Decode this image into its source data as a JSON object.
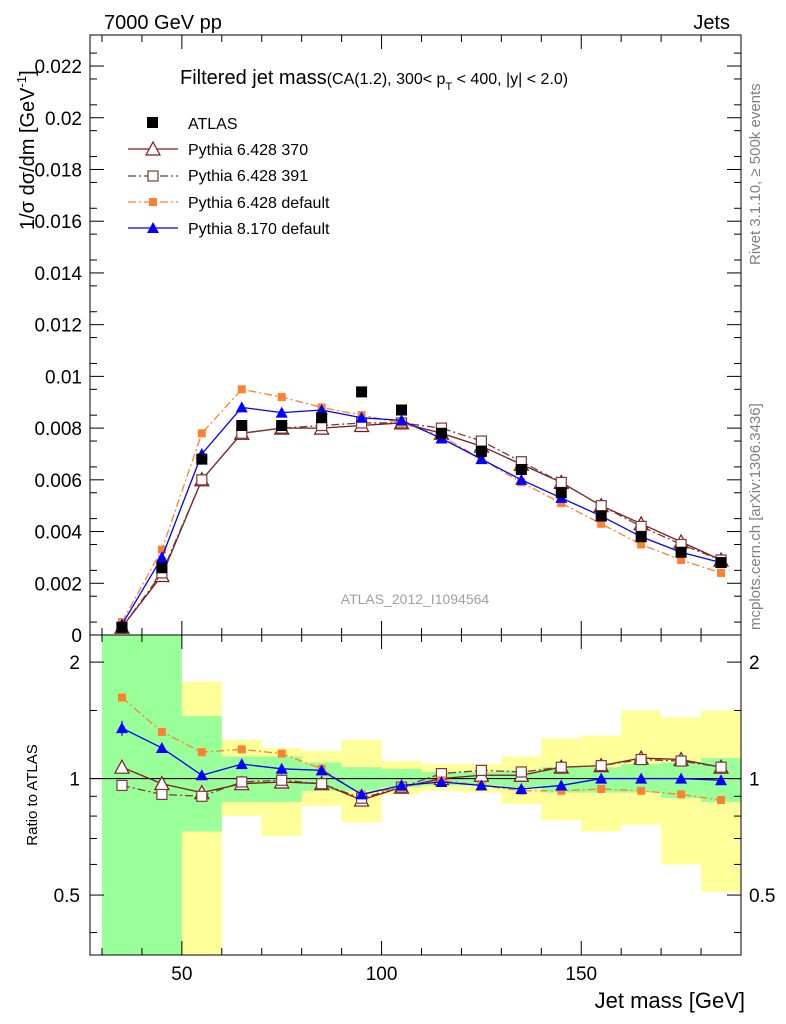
{
  "header": {
    "left": "7000 GeV pp",
    "right": "Jets"
  },
  "side": {
    "rivet": "Rivet 3.1.10, ≥ 500k events",
    "mcplots": "mcplots.cern.ch [arXiv:1306.3436]"
  },
  "watermark": "ATLAS_2012_I1094564",
  "colors": {
    "atlas": "#000000",
    "p370": "#7b1a1a",
    "p391": "#7b3a3a",
    "p6def": "#ff8030",
    "p8def": "#0000ff",
    "band_inner": "#99ff99",
    "band_outer": "#ffff99"
  },
  "chart_data": [
    {
      "type": "line",
      "title_main": "Filtered jet mass",
      "title_sub": "(CA(1.2), 300< p",
      "title_sub_T": "T",
      "title_sub_rest": " < 400, |y| < 2.0)",
      "ylabel": "1/σ dσ/dm [GeV",
      "ylabel_sup": "-1",
      "ylabel_close": "]",
      "xlim": [
        27,
        190
      ],
      "ylim": [
        0,
        0.0232
      ],
      "yticks": [
        "0",
        "0.002",
        "0.004",
        "0.006",
        "0.008",
        "0.01",
        "0.012",
        "0.014",
        "0.016",
        "0.018",
        "0.02",
        "0.022"
      ],
      "ytick_values": [
        0,
        0.002,
        0.004,
        0.006,
        0.008,
        0.01,
        0.012,
        0.014,
        0.016,
        0.018,
        0.02,
        0.022
      ],
      "x": [
        35,
        45,
        55,
        65,
        75,
        85,
        95,
        105,
        115,
        125,
        135,
        145,
        155,
        165,
        175,
        185
      ],
      "legend": [
        "ATLAS",
        "Pythia 6.428 370",
        "Pythia 6.428 391",
        "Pythia 6.428 default",
        "Pythia 8.170 default"
      ],
      "series": [
        {
          "name": "ATLAS",
          "values": [
            0.0003,
            0.0026,
            0.0068,
            0.0081,
            0.0081,
            0.0084,
            0.0094,
            0.0087,
            0.0078,
            0.0071,
            0.0064,
            0.0055,
            0.0046,
            0.0038,
            0.0032,
            0.0028
          ]
        },
        {
          "name": "Pythia 6.428 370",
          "values": [
            0.0003,
            0.0023,
            0.006,
            0.0078,
            0.008,
            0.008,
            0.0081,
            0.0082,
            0.0078,
            0.0073,
            0.0066,
            0.0059,
            0.005,
            0.0043,
            0.0036,
            0.0029
          ]
        },
        {
          "name": "Pythia 6.428 391",
          "values": [
            0.0003,
            0.0024,
            0.006,
            0.0078,
            0.008,
            0.0081,
            0.0082,
            0.0082,
            0.008,
            0.0075,
            0.0067,
            0.0059,
            0.005,
            0.0042,
            0.0035,
            0.0029
          ]
        },
        {
          "name": "Pythia 6.428 default",
          "values": [
            0.0005,
            0.0033,
            0.0078,
            0.0095,
            0.0092,
            0.0088,
            0.0085,
            0.0082,
            0.0077,
            0.0068,
            0.0059,
            0.0051,
            0.0043,
            0.0035,
            0.0029,
            0.0024
          ]
        },
        {
          "name": "Pythia 8.170 default",
          "values": [
            0.0004,
            0.003,
            0.007,
            0.0088,
            0.0086,
            0.0087,
            0.0084,
            0.0083,
            0.0076,
            0.0068,
            0.006,
            0.0053,
            0.0046,
            0.0038,
            0.0032,
            0.0028
          ]
        }
      ]
    },
    {
      "type": "line",
      "ylabel": "Ratio to ATLAS",
      "xlabel": "Jet mass [GeV]",
      "xticks": [
        "50",
        "100",
        "150"
      ],
      "xtick_values": [
        50,
        100,
        150
      ],
      "xlim": [
        27,
        190
      ],
      "ylim": [
        0.35,
        2.35
      ],
      "yscale": "log",
      "yticks": [
        "0.5",
        "1",
        "2"
      ],
      "ytick_values": [
        0.5,
        1,
        2
      ],
      "x": [
        35,
        45,
        55,
        65,
        75,
        85,
        95,
        105,
        115,
        125,
        135,
        145,
        155,
        165,
        175,
        185
      ],
      "bin_edges": [
        30,
        40,
        50,
        60,
        70,
        80,
        90,
        100,
        110,
        120,
        130,
        140,
        150,
        160,
        170,
        180,
        190
      ],
      "band_inner": {
        "low": [
          0.35,
          0.35,
          0.73,
          0.87,
          0.87,
          0.93,
          0.93,
          0.95,
          0.96,
          0.96,
          0.95,
          0.92,
          0.92,
          0.92,
          0.89,
          0.87
        ],
        "high": [
          2.35,
          2.35,
          1.45,
          1.14,
          1.14,
          1.1,
          1.07,
          1.06,
          1.04,
          1.04,
          1.05,
          1.07,
          1.07,
          1.09,
          1.1,
          1.13
        ]
      },
      "band_outer": {
        "low": [
          0.35,
          0.35,
          0.35,
          0.8,
          0.71,
          0.85,
          0.77,
          0.91,
          0.93,
          0.92,
          0.86,
          0.78,
          0.73,
          0.76,
          0.6,
          0.51
        ],
        "high": [
          2.35,
          2.22,
          1.78,
          1.26,
          1.2,
          1.18,
          1.26,
          1.11,
          1.09,
          1.09,
          1.14,
          1.27,
          1.29,
          1.5,
          1.44,
          1.5
        ]
      },
      "series": [
        {
          "name": "Pythia 6.428 370",
          "values": [
            1.07,
            0.97,
            0.92,
            0.97,
            0.98,
            0.97,
            0.88,
            0.95,
            1.0,
            1.02,
            1.02,
            1.07,
            1.08,
            1.13,
            1.12,
            1.07
          ]
        },
        {
          "name": "Pythia 6.428 391",
          "values": [
            0.96,
            0.91,
            0.9,
            0.98,
            0.99,
            0.97,
            0.89,
            0.95,
            1.03,
            1.05,
            1.04,
            1.07,
            1.08,
            1.12,
            1.11,
            1.07
          ]
        },
        {
          "name": "Pythia 6.428 default",
          "values": [
            1.62,
            1.32,
            1.17,
            1.19,
            1.16,
            1.06,
            0.91,
            0.95,
            0.99,
            0.96,
            0.93,
            0.93,
            0.94,
            0.93,
            0.91,
            0.88
          ]
        },
        {
          "name": "Pythia 8.170 default",
          "values": [
            1.35,
            1.2,
            1.02,
            1.09,
            1.06,
            1.05,
            0.91,
            0.96,
            0.98,
            0.96,
            0.94,
            0.96,
            1.0,
            1.0,
            1.0,
            0.99
          ]
        }
      ],
      "errors": {
        "Pythia 8.170 default": [
          0.06,
          0.02,
          0.01,
          0.01,
          0.01,
          0.01,
          0.01,
          0.01,
          0.01,
          0.01,
          0.01,
          0.01,
          0.01,
          0.01,
          0.01,
          0.01
        ]
      }
    }
  ]
}
